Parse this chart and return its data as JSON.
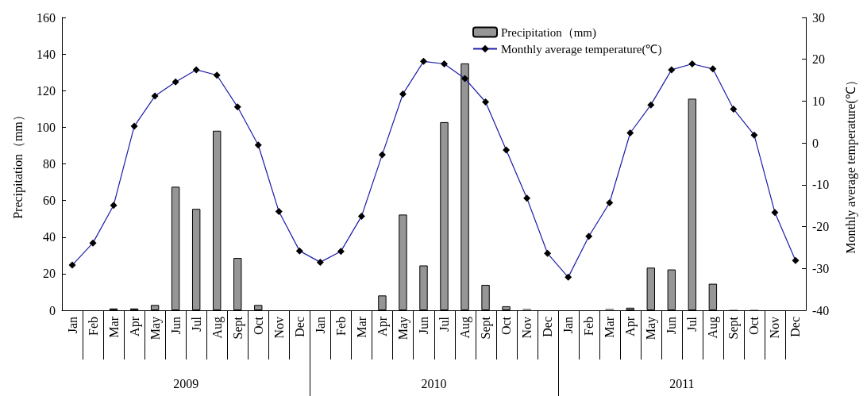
{
  "chart_data": {
    "type": "bar",
    "ylabel": "Precipitation（mm）",
    "y2label": "Monthly average temperature(℃）",
    "categories": [
      "Jan",
      "Feb",
      "Mar",
      "Apr",
      "May",
      "Jun",
      "Jul",
      "Aug",
      "Sept",
      "Oct",
      "Nov",
      "Dec",
      "Jan",
      "Feb",
      "Mar",
      "Apr",
      "May",
      "Jun",
      "Jul",
      "Aug",
      "Sept",
      "Oct",
      "Nov",
      "Dec",
      "Jan",
      "Feb",
      "Mar",
      "Apr",
      "May",
      "Jun",
      "Jul",
      "Aug",
      "Sept",
      "Oct",
      "Nov",
      "Dec"
    ],
    "annotations": [
      "2009",
      "2010",
      "2011"
    ],
    "series": [
      {
        "name": "Precipitation（mm)",
        "type": "bar",
        "color": "#969696",
        "values": [
          0,
          0,
          1,
          1,
          2.9,
          67.5,
          55.4,
          98.1,
          28.6,
          2.9,
          0,
          0,
          0,
          0,
          0,
          8.1,
          52.3,
          24.5,
          102.8,
          134.9,
          13.9,
          2.2,
          0.9,
          0,
          0,
          0,
          0.9,
          1.4,
          23.3,
          22.3,
          115.6,
          14.5,
          0.4,
          0.4,
          0,
          0
        ]
      },
      {
        "name": "Monthly average temperature(℃)",
        "type": "line",
        "axis": "y2",
        "color": "#1c1ca8",
        "marker": "diamond",
        "values": [
          -29.2,
          -23.9,
          -14.9,
          4.0,
          11.2,
          14.6,
          17.5,
          16.2,
          8.6,
          -0.5,
          -16.4,
          -25.8,
          -28.5,
          -25.9,
          -17.5,
          -2.8,
          11.7,
          19.5,
          18.9,
          15.4,
          9.8,
          -1.7,
          -13.2,
          -26.4,
          -32.1,
          -22.3,
          -14.3,
          2.4,
          9.1,
          17.5,
          18.9,
          17.7,
          8.1,
          1.9,
          -16.6,
          -28.1
        ]
      }
    ],
    "ylim": [
      0,
      160
    ],
    "yticks": [
      0,
      20,
      40,
      60,
      80,
      100,
      120,
      140,
      160
    ],
    "y2lim": [
      -40,
      30
    ],
    "y2ticks": [
      -40,
      -30,
      -20,
      -10,
      0,
      10,
      20,
      30
    ],
    "legend": "top",
    "grid": false
  }
}
